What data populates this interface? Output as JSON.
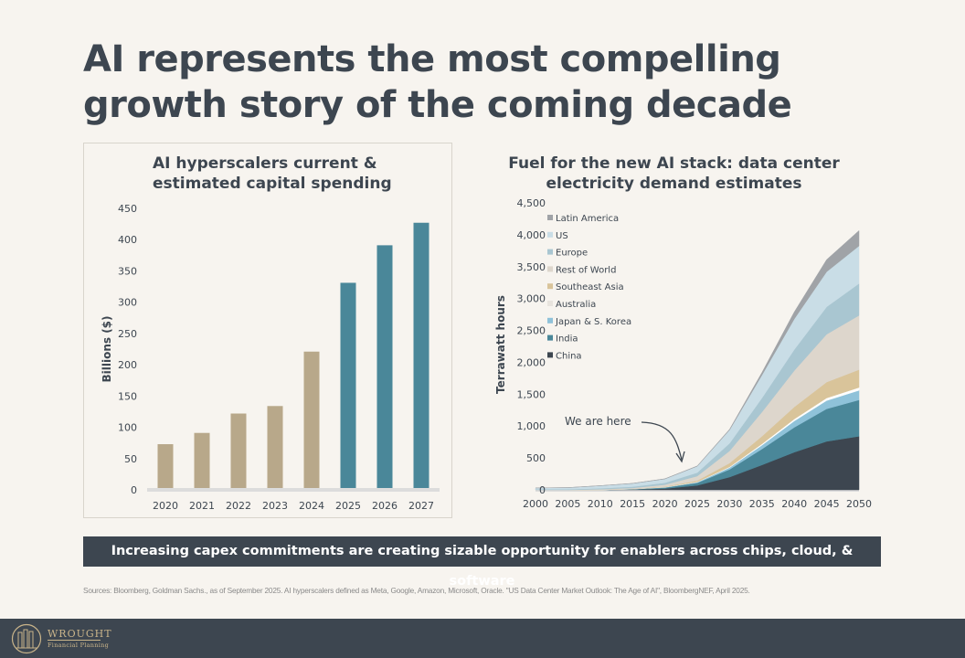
{
  "title": "AI represents the most compelling growth story of the coming decade",
  "chart_data": [
    {
      "type": "bar",
      "title": "AI hyperscalers current & estimated capital spending",
      "ylabel": "Billions ($)",
      "ylim": [
        0,
        450
      ],
      "yticks": [
        0,
        50,
        100,
        150,
        200,
        250,
        300,
        350,
        400,
        450
      ],
      "categories": [
        "2020",
        "2021",
        "2022",
        "2023",
        "2024",
        "2025",
        "2026",
        "2027"
      ],
      "values": [
        73,
        91,
        122,
        134,
        221,
        331,
        391,
        427
      ],
      "kind": [
        "actual",
        "actual",
        "actual",
        "actual",
        "actual",
        "estimate",
        "estimate",
        "estimate"
      ],
      "colors": {
        "actual": "#b8a88a",
        "estimate": "#4a8799"
      },
      "grid": false
    },
    {
      "type": "area",
      "stacked": true,
      "title": "Fuel for the new AI stack: data center electricity demand estimates",
      "ylabel": "Terrawatt hours",
      "ylim": [
        0,
        4500
      ],
      "yticks": [
        0,
        500,
        1000,
        1500,
        2000,
        2500,
        3000,
        3500,
        4000,
        4500
      ],
      "xticks": [
        2000,
        2005,
        2010,
        2015,
        2020,
        2025,
        2030,
        2035,
        2040,
        2045,
        2050
      ],
      "xlim": [
        2000,
        2050
      ],
      "legend_position": "top-left",
      "annotation": "We are here",
      "annotation_x": 2025,
      "x": [
        2000,
        2005,
        2010,
        2015,
        2020,
        2025,
        2030,
        2035,
        2040,
        2045,
        2050
      ],
      "series": [
        {
          "name": "China",
          "color": "#3d4650",
          "values": [
            0,
            0,
            0,
            5,
            20,
            70,
            200,
            390,
            590,
            760,
            840
          ]
        },
        {
          "name": "India",
          "color": "#4a8799",
          "values": [
            0,
            0,
            0,
            5,
            15,
            40,
            120,
            250,
            390,
            510,
            570
          ]
        },
        {
          "name": "Japan & S. Korea",
          "color": "#8fc2d9",
          "values": [
            0,
            0,
            0,
            2,
            5,
            10,
            30,
            60,
            100,
            130,
            150
          ]
        },
        {
          "name": "Australia",
          "color": "#ffffff",
          "values": [
            0,
            0,
            0,
            0,
            3,
            5,
            10,
            20,
            30,
            40,
            45
          ]
        },
        {
          "name": "Southeast Asia",
          "color": "#d9c49a",
          "values": [
            0,
            0,
            0,
            3,
            8,
            20,
            60,
            120,
            190,
            250,
            280
          ]
        },
        {
          "name": "Rest of World",
          "color": "#ddd6cc",
          "values": [
            0,
            0,
            10,
            15,
            30,
            70,
            190,
            380,
            570,
            750,
            850
          ]
        },
        {
          "name": "Europe",
          "color": "#a9c6d1",
          "values": [
            10,
            10,
            15,
            20,
            30,
            55,
            120,
            220,
            330,
            430,
            500
          ]
        },
        {
          "name": "US",
          "color": "#c9dde6",
          "values": [
            20,
            25,
            40,
            50,
            60,
            100,
            210,
            360,
            480,
            550,
            590
          ]
        },
        {
          "name": "Latin America",
          "color": "#a0a3a7",
          "values": [
            0,
            0,
            0,
            2,
            3,
            5,
            10,
            40,
            110,
            190,
            240
          ]
        }
      ]
    }
  ],
  "banner": "Increasing capex commitments are creating sizable opportunity for enablers across chips, cloud, & software",
  "sources": "Sources: Bloomberg, Goldman Sachs., as of September 2025. AI hyperscalers defined as Meta, Google, Amazon, Microsoft, Oracle. \"US Data Center Market Outlook: The Age of AI\", BloombergNEF, April 2025.",
  "footer": {
    "brand": "WROUGHT",
    "brand_sub": "Financial Planning",
    "logo_icon": "building-columns-logo"
  }
}
